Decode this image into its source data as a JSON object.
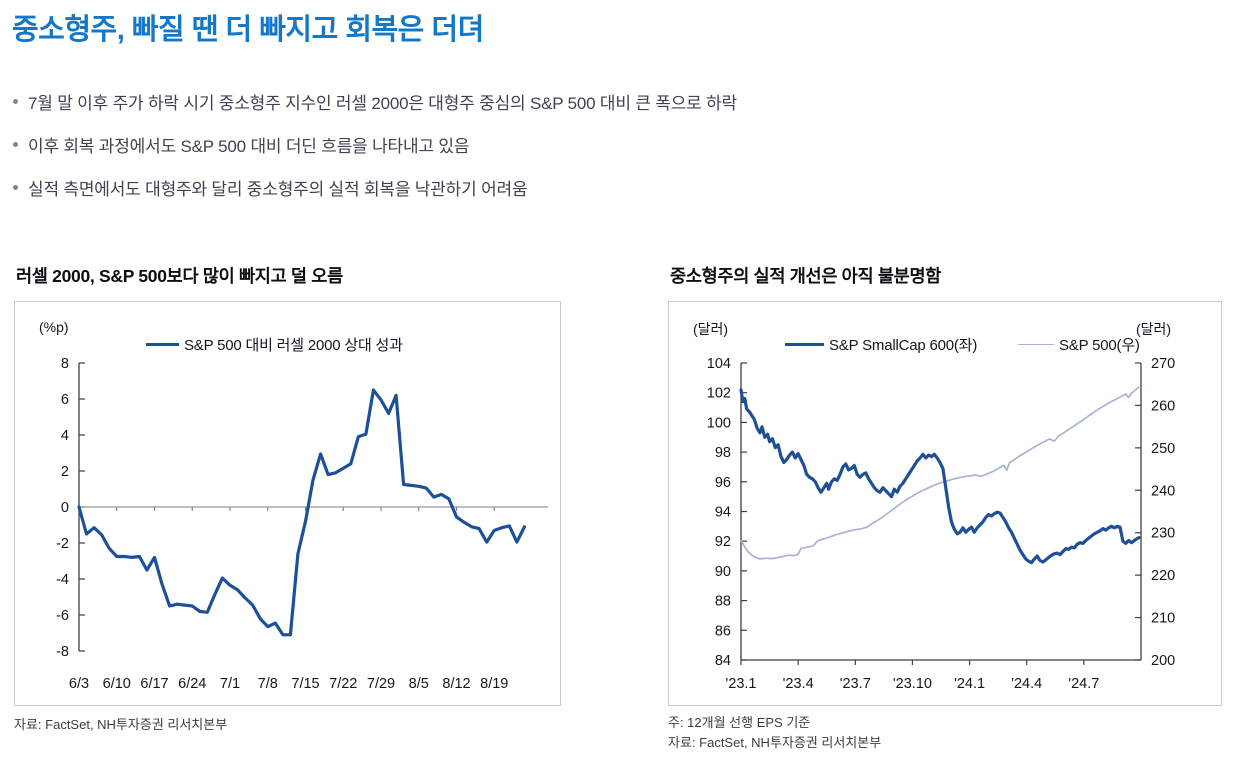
{
  "page": {
    "title": "중소형주, 빠질 땐 더 빠지고 회복은 더뎌",
    "bullets": [
      "7월 말 이후 주가 하락 시기 중소형주 지수인 러셀 2000은 대형주 중심의 S&P 500 대비 큰 폭으로 하락",
      "이후 회복 과정에서도 S&P 500 대비 더딘 흐름을 나타내고 있음",
      "실적 측면에서도 대형주와 달리 중소형주의 실적 회복을 낙관하기 어려움"
    ]
  },
  "left_panel": {
    "heading": "러셀 2000, S&P 500보다 많이 빠지고 덜 오름",
    "source": "자료: FactSet, NH투자증권 리서치본부"
  },
  "right_panel": {
    "heading": "중소형주의 실적 개선은 아직 불분명함",
    "note": "주: 12개월 선행 EPS 기준",
    "source": "자료: FactSet, NH투자증권 리서치본부"
  },
  "colors": {
    "accent_blue": "#1478c8",
    "navy_line": "#1d5096",
    "light_line": "#a8b3d8",
    "heading_text": "#0e0e14",
    "body_text": "#3f4250",
    "tick_text": "#16161e",
    "axis": "#3f3f3f",
    "zero_line": "#7f7f7f",
    "border": "#c9c9c9",
    "source_text": "#3c3c3c",
    "bullet_dot": "#7d8699"
  },
  "chart_data": [
    {
      "type": "line",
      "title": "러셀 2000, S&P 500보다 많이 빠지고 덜 오름",
      "y_unit": "(%p)",
      "ylabel": "S&P 500 대비 러셀 2000 상대 성과 (%p)",
      "ylim": [
        -8,
        8
      ],
      "y_ticks": [
        8,
        6,
        4,
        2,
        0,
        -2,
        -4,
        -6,
        -8
      ],
      "baseline": 0,
      "grid": false,
      "legend_position": "top",
      "x_tick_labels": [
        "6/3",
        "6/10",
        "6/17",
        "6/24",
        "7/1",
        "7/8",
        "7/15",
        "7/22",
        "7/29",
        "8/5",
        "8/12",
        "8/19"
      ],
      "x_tick_indices": [
        0,
        5,
        10,
        15,
        20,
        25,
        30,
        35,
        40,
        45,
        50,
        55
      ],
      "series": [
        {
          "name": "S&P 500 대비 러셀 2000 상대 성과",
          "values": [
            0.0,
            -1.5,
            -1.15,
            -1.55,
            -2.3,
            -2.75,
            -2.75,
            -2.8,
            -2.75,
            -3.5,
            -2.8,
            -4.3,
            -5.5,
            -5.4,
            -5.45,
            -5.5,
            -5.8,
            -5.85,
            -4.85,
            -3.95,
            -4.35,
            -4.6,
            -5.05,
            -5.45,
            -6.2,
            -6.65,
            -6.45,
            -7.1,
            -7.1,
            -2.6,
            -0.8,
            1.5,
            2.95,
            1.8,
            1.9,
            2.15,
            2.4,
            3.9,
            4.05,
            6.5,
            5.95,
            5.2,
            6.2,
            1.25,
            1.2,
            1.15,
            1.05,
            0.55,
            0.7,
            0.45,
            -0.55,
            -0.85,
            -1.1,
            -1.2,
            -1.95,
            -1.3,
            -1.15,
            -1.05,
            -1.95,
            -1.1
          ]
        }
      ]
    },
    {
      "type": "line",
      "title": "중소형주의 실적 개선은 아직 불분명함",
      "left_unit": "(달러)",
      "right_unit": "(달러)",
      "left_ylim": [
        84,
        104
      ],
      "left_y_ticks": [
        104,
        102,
        100,
        98,
        96,
        94,
        92,
        90,
        88,
        86,
        84
      ],
      "right_ylim": [
        200,
        270
      ],
      "right_y_ticks": [
        270,
        260,
        250,
        240,
        230,
        220,
        210,
        200
      ],
      "grid": false,
      "legend_position": "top",
      "x_range_months": [
        0,
        21
      ],
      "x_tick_labels": [
        "'23.1",
        "'23.4",
        "'23.7",
        "'23.10",
        "'24.1",
        "'24.4",
        "'24.7"
      ],
      "x_tick_months": [
        0,
        3,
        6,
        9,
        12,
        15,
        18
      ],
      "series": [
        {
          "name": "S&P SmallCap 600(좌)",
          "axis": "left",
          "points": [
            [
              0,
              102.2
            ],
            [
              0.1,
              101.4
            ],
            [
              0.2,
              101.6
            ],
            [
              0.3,
              100.9
            ],
            [
              0.45,
              100.7
            ],
            [
              0.6,
              100.4
            ],
            [
              0.7,
              100.2
            ],
            [
              0.85,
              99.6
            ],
            [
              1.0,
              99.3
            ],
            [
              1.1,
              99.7
            ],
            [
              1.25,
              99.0
            ],
            [
              1.4,
              99.2
            ],
            [
              1.5,
              98.7
            ],
            [
              1.65,
              98.9
            ],
            [
              1.8,
              98.3
            ],
            [
              1.95,
              98.5
            ],
            [
              2.1,
              97.7
            ],
            [
              2.25,
              97.3
            ],
            [
              2.4,
              97.5
            ],
            [
              2.55,
              97.8
            ],
            [
              2.7,
              98.0
            ],
            [
              2.85,
              97.6
            ],
            [
              3.0,
              97.9
            ],
            [
              3.15,
              97.5
            ],
            [
              3.3,
              97.1
            ],
            [
              3.45,
              96.5
            ],
            [
              3.6,
              96.3
            ],
            [
              3.75,
              96.2
            ],
            [
              3.9,
              96.0
            ],
            [
              4.05,
              95.6
            ],
            [
              4.2,
              95.3
            ],
            [
              4.35,
              95.6
            ],
            [
              4.5,
              95.9
            ],
            [
              4.6,
              95.5
            ],
            [
              4.75,
              96.0
            ],
            [
              4.9,
              96.2
            ],
            [
              5.05,
              96.1
            ],
            [
              5.2,
              96.5
            ],
            [
              5.35,
              97.0
            ],
            [
              5.5,
              97.2
            ],
            [
              5.65,
              96.8
            ],
            [
              5.8,
              96.9
            ],
            [
              5.95,
              97.1
            ],
            [
              6.1,
              96.5
            ],
            [
              6.25,
              96.3
            ],
            [
              6.4,
              96.5
            ],
            [
              6.55,
              96.6
            ],
            [
              6.7,
              96.2
            ],
            [
              6.85,
              95.9
            ],
            [
              7.0,
              95.6
            ],
            [
              7.15,
              95.4
            ],
            [
              7.3,
              95.3
            ],
            [
              7.45,
              95.6
            ],
            [
              7.6,
              95.4
            ],
            [
              7.75,
              95.2
            ],
            [
              7.9,
              95.0
            ],
            [
              8.05,
              95.5
            ],
            [
              8.2,
              95.3
            ],
            [
              8.35,
              95.7
            ],
            [
              8.5,
              95.9
            ],
            [
              8.65,
              96.2
            ],
            [
              8.8,
              96.5
            ],
            [
              8.95,
              96.8
            ],
            [
              9.1,
              97.1
            ],
            [
              9.25,
              97.4
            ],
            [
              9.4,
              97.6
            ],
            [
              9.55,
              97.85
            ],
            [
              9.7,
              97.6
            ],
            [
              9.85,
              97.8
            ],
            [
              10.0,
              97.7
            ],
            [
              10.15,
              97.85
            ],
            [
              10.3,
              97.6
            ],
            [
              10.45,
              97.3
            ],
            [
              10.6,
              96.9
            ],
            [
              10.75,
              95.6
            ],
            [
              10.9,
              94.3
            ],
            [
              11.05,
              93.3
            ],
            [
              11.2,
              92.8
            ],
            [
              11.35,
              92.5
            ],
            [
              11.5,
              92.6
            ],
            [
              11.65,
              92.9
            ],
            [
              11.8,
              92.6
            ],
            [
              11.95,
              92.8
            ],
            [
              12.1,
              92.95
            ],
            [
              12.25,
              92.6
            ],
            [
              12.4,
              92.9
            ],
            [
              12.55,
              93.1
            ],
            [
              12.7,
              93.3
            ],
            [
              12.85,
              93.6
            ],
            [
              13.0,
              93.8
            ],
            [
              13.15,
              93.7
            ],
            [
              13.3,
              93.85
            ],
            [
              13.45,
              93.95
            ],
            [
              13.6,
              93.9
            ],
            [
              13.75,
              93.6
            ],
            [
              13.9,
              93.3
            ],
            [
              14.05,
              92.9
            ],
            [
              14.2,
              92.6
            ],
            [
              14.35,
              92.2
            ],
            [
              14.5,
              91.8
            ],
            [
              14.65,
              91.4
            ],
            [
              14.8,
              91.1
            ],
            [
              14.95,
              90.8
            ],
            [
              15.1,
              90.65
            ],
            [
              15.25,
              90.55
            ],
            [
              15.4,
              90.8
            ],
            [
              15.55,
              91.0
            ],
            [
              15.7,
              90.7
            ],
            [
              15.85,
              90.6
            ],
            [
              16.0,
              90.75
            ],
            [
              16.15,
              90.9
            ],
            [
              16.3,
              91.05
            ],
            [
              16.45,
              91.15
            ],
            [
              16.6,
              91.2
            ],
            [
              16.75,
              91.1
            ],
            [
              16.9,
              91.3
            ],
            [
              17.05,
              91.5
            ],
            [
              17.2,
              91.45
            ],
            [
              17.35,
              91.6
            ],
            [
              17.5,
              91.55
            ],
            [
              17.65,
              91.8
            ],
            [
              17.8,
              91.9
            ],
            [
              17.95,
              91.85
            ],
            [
              18.1,
              92.05
            ],
            [
              18.25,
              92.2
            ],
            [
              18.4,
              92.35
            ],
            [
              18.55,
              92.5
            ],
            [
              18.7,
              92.6
            ],
            [
              18.85,
              92.7
            ],
            [
              19.0,
              92.85
            ],
            [
              19.15,
              92.75
            ],
            [
              19.3,
              92.9
            ],
            [
              19.45,
              93.0
            ],
            [
              19.6,
              92.9
            ],
            [
              19.75,
              93.0
            ],
            [
              19.9,
              92.95
            ],
            [
              20.05,
              92.0
            ],
            [
              20.2,
              91.85
            ],
            [
              20.35,
              92.05
            ],
            [
              20.5,
              91.9
            ],
            [
              20.7,
              92.1
            ],
            [
              20.9,
              92.25
            ]
          ]
        },
        {
          "name": "S&P 500(우)",
          "axis": "right",
          "points": [
            [
              0,
              228.2
            ],
            [
              0.2,
              226.6
            ],
            [
              0.4,
              225.4
            ],
            [
              0.6,
              224.6
            ],
            [
              0.8,
              224.1
            ],
            [
              1.0,
              223.8
            ],
            [
              1.3,
              224.0
            ],
            [
              1.6,
              223.9
            ],
            [
              1.9,
              224.1
            ],
            [
              2.2,
              224.4
            ],
            [
              2.5,
              224.7
            ],
            [
              2.8,
              224.6
            ],
            [
              3.0,
              224.9
            ],
            [
              3.15,
              226.3
            ],
            [
              3.5,
              226.6
            ],
            [
              3.8,
              226.9
            ],
            [
              4.0,
              228.0
            ],
            [
              4.3,
              228.5
            ],
            [
              4.6,
              228.9
            ],
            [
              4.9,
              229.4
            ],
            [
              5.2,
              229.8
            ],
            [
              5.5,
              230.2
            ],
            [
              5.8,
              230.5
            ],
            [
              6.0,
              230.7
            ],
            [
              6.3,
              230.9
            ],
            [
              6.6,
              231.3
            ],
            [
              6.9,
              232.2
            ],
            [
              7.2,
              233.0
            ],
            [
              7.5,
              233.9
            ],
            [
              7.8,
              234.9
            ],
            [
              8.1,
              235.9
            ],
            [
              8.4,
              236.9
            ],
            [
              8.7,
              237.8
            ],
            [
              9.0,
              238.6
            ],
            [
              9.3,
              239.4
            ],
            [
              9.6,
              240.1
            ],
            [
              9.9,
              240.7
            ],
            [
              10.2,
              241.3
            ],
            [
              10.5,
              241.8
            ],
            [
              10.8,
              242.2
            ],
            [
              11.1,
              242.6
            ],
            [
              11.4,
              242.9
            ],
            [
              11.7,
              243.2
            ],
            [
              12.0,
              243.4
            ],
            [
              12.3,
              243.6
            ],
            [
              12.6,
              243.3
            ],
            [
              12.9,
              243.8
            ],
            [
              13.2,
              244.4
            ],
            [
              13.5,
              245.1
            ],
            [
              13.8,
              245.9
            ],
            [
              13.95,
              244.7
            ],
            [
              14.1,
              246.5
            ],
            [
              14.4,
              247.4
            ],
            [
              14.7,
              248.3
            ],
            [
              15.0,
              249.1
            ],
            [
              15.3,
              249.9
            ],
            [
              15.6,
              250.7
            ],
            [
              15.9,
              251.4
            ],
            [
              16.2,
              252.1
            ],
            [
              16.45,
              251.6
            ],
            [
              16.7,
              252.9
            ],
            [
              17.0,
              253.7
            ],
            [
              17.3,
              254.6
            ],
            [
              17.6,
              255.5
            ],
            [
              17.9,
              256.4
            ],
            [
              18.2,
              257.4
            ],
            [
              18.5,
              258.3
            ],
            [
              18.8,
              259.2
            ],
            [
              19.1,
              260.0
            ],
            [
              19.4,
              260.8
            ],
            [
              19.7,
              261.5
            ],
            [
              20.0,
              262.2
            ],
            [
              20.2,
              262.7
            ],
            [
              20.35,
              261.9
            ],
            [
              20.5,
              262.9
            ],
            [
              20.7,
              263.6
            ],
            [
              20.9,
              264.4
            ]
          ]
        }
      ]
    }
  ]
}
